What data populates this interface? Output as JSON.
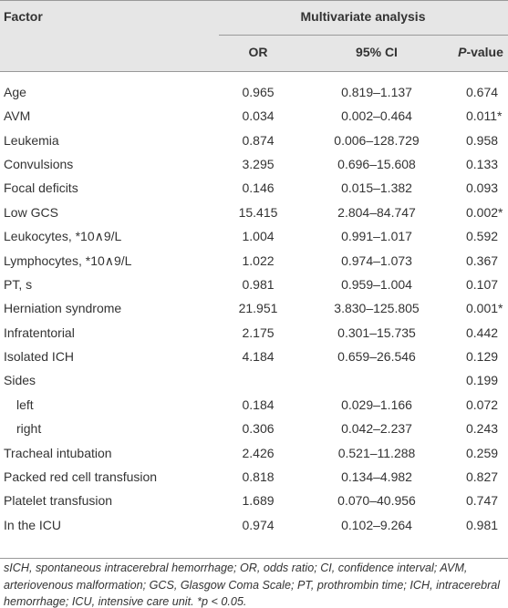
{
  "table": {
    "header": {
      "factor": "Factor",
      "group": "Multivariate analysis",
      "or": "OR",
      "ci": "95% CI",
      "p": {
        "italic": "P",
        "rest": "-value"
      }
    },
    "rows": [
      {
        "cells": [
          "Age",
          "0.965",
          "0.819–1.137",
          "0.674"
        ]
      },
      {
        "cells": [
          "AVM",
          "0.034",
          "0.002–0.464",
          "0.011*"
        ]
      },
      {
        "cells": [
          "Leukemia",
          "0.874",
          "0.006–128.729",
          "0.958"
        ]
      },
      {
        "cells": [
          "Convulsions",
          "3.295",
          "0.696–15.608",
          "0.133"
        ]
      },
      {
        "cells": [
          "Focal deficits",
          "0.146",
          "0.015–1.382",
          "0.093"
        ]
      },
      {
        "cells": [
          "Low GCS",
          "15.415",
          "2.804–84.747",
          "0.002*"
        ]
      },
      {
        "cells": [
          "Leukocytes, *10∧9/L",
          "1.004",
          "0.991–1.017",
          "0.592"
        ]
      },
      {
        "cells": [
          "Lymphocytes, *10∧9/L",
          "1.022",
          "0.974–1.073",
          "0.367"
        ]
      },
      {
        "cells": [
          "PT, s",
          "0.981",
          "0.959–1.004",
          "0.107"
        ]
      },
      {
        "cells": [
          "Herniation syndrome",
          "21.951",
          "3.830–125.805",
          "0.001*"
        ]
      },
      {
        "cells": [
          "Infratentorial",
          "2.175",
          "0.301–15.735",
          "0.442"
        ]
      },
      {
        "cells": [
          "Isolated ICH",
          "4.184",
          "0.659–26.546",
          "0.129"
        ]
      },
      {
        "cells": [
          "Sides",
          null,
          null,
          "0.199"
        ]
      },
      {
        "cells": [
          "left",
          "0.184",
          "0.029–1.166",
          "0.072"
        ],
        "indent": true
      },
      {
        "cells": [
          "right",
          "0.306",
          "0.042–2.237",
          "0.243"
        ],
        "indent": true
      },
      {
        "cells": [
          "Tracheal intubation",
          "2.426",
          "0.521–11.288",
          "0.259"
        ]
      },
      {
        "cells": [
          "Packed red cell transfusion",
          "0.818",
          "0.134–4.982",
          "0.827"
        ]
      },
      {
        "cells": [
          "Platelet transfusion",
          "1.689",
          "0.070–40.956",
          "0.747"
        ]
      },
      {
        "cells": [
          "In the ICU",
          "0.974",
          "0.102–9.264",
          "0.981"
        ]
      }
    ]
  },
  "footnote": "sICH, spontaneous intracerebral hemorrhage; OR, odds ratio; CI, confidence interval; AVM, arteriovenous malformation; GCS, Glasgow Coma Scale; PT, prothrombin time; ICH, intracerebral hemorrhage; ICU, intensive care unit. *p < 0.05."
}
